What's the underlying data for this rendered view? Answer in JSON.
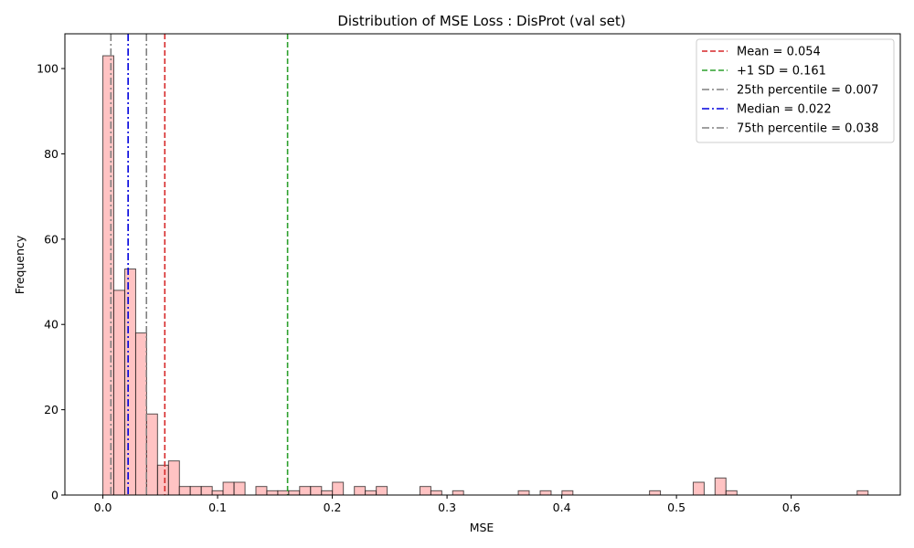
{
  "chart_data": {
    "type": "bar",
    "title": "Distribution of MSE Loss : DisProt (val set)",
    "xlabel": "MSE",
    "ylabel": "Frequency",
    "xlim": [
      -0.0331,
      0.6951
    ],
    "ylim": [
      0,
      108.15
    ],
    "xticks": [
      0.0,
      0.1,
      0.2,
      0.3,
      0.4,
      0.5,
      0.6
    ],
    "xtick_labels": [
      "0.0",
      "0.1",
      "0.2",
      "0.3",
      "0.4",
      "0.5",
      "0.6"
    ],
    "yticks": [
      0,
      20,
      40,
      60,
      80,
      100
    ],
    "ytick_labels": [
      "0",
      "20",
      "40",
      "60",
      "80",
      "100"
    ],
    "grid": false,
    "legend_position": "top-right",
    "bin_width": 0.00953,
    "bins": [
      {
        "x0": 0.0,
        "count": 103
      },
      {
        "x0": 0.0095,
        "count": 48
      },
      {
        "x0": 0.0191,
        "count": 53
      },
      {
        "x0": 0.0286,
        "count": 38
      },
      {
        "x0": 0.0381,
        "count": 19
      },
      {
        "x0": 0.0477,
        "count": 7
      },
      {
        "x0": 0.0572,
        "count": 8
      },
      {
        "x0": 0.0667,
        "count": 2
      },
      {
        "x0": 0.0762,
        "count": 2
      },
      {
        "x0": 0.0858,
        "count": 2
      },
      {
        "x0": 0.0953,
        "count": 1
      },
      {
        "x0": 0.1048,
        "count": 3
      },
      {
        "x0": 0.1144,
        "count": 3
      },
      {
        "x0": 0.1334,
        "count": 2
      },
      {
        "x0": 0.143,
        "count": 1
      },
      {
        "x0": 0.1525,
        "count": 1
      },
      {
        "x0": 0.162,
        "count": 1
      },
      {
        "x0": 0.1715,
        "count": 2
      },
      {
        "x0": 0.1811,
        "count": 2
      },
      {
        "x0": 0.1906,
        "count": 1
      },
      {
        "x0": 0.2001,
        "count": 3
      },
      {
        "x0": 0.2192,
        "count": 2
      },
      {
        "x0": 0.2287,
        "count": 1
      },
      {
        "x0": 0.2383,
        "count": 2
      },
      {
        "x0": 0.2764,
        "count": 2
      },
      {
        "x0": 0.2859,
        "count": 1
      },
      {
        "x0": 0.3049,
        "count": 1
      },
      {
        "x0": 0.3621,
        "count": 1
      },
      {
        "x0": 0.3812,
        "count": 1
      },
      {
        "x0": 0.4002,
        "count": 1
      },
      {
        "x0": 0.4765,
        "count": 1
      },
      {
        "x0": 0.5146,
        "count": 3
      },
      {
        "x0": 0.5336,
        "count": 4
      },
      {
        "x0": 0.5432,
        "count": 1
      },
      {
        "x0": 0.6575,
        "count": 1
      }
    ],
    "bar_color": "#ffc0c0",
    "bar_edge_color": "#000000",
    "reference_lines": [
      {
        "label": "Mean = 0.054",
        "x": 0.054,
        "color": "#d62728",
        "style": "dashed"
      },
      {
        "label": "+1 SD = 0.161",
        "x": 0.161,
        "color": "#2ca02c",
        "style": "dashed"
      },
      {
        "label": "25th percentile = 0.007",
        "x": 0.007,
        "color": "#808080",
        "style": "dashdot"
      },
      {
        "label": "Median = 0.022",
        "x": 0.022,
        "color": "#0000dd",
        "style": "dashdot"
      },
      {
        "label": "75th percentile = 0.038",
        "x": 0.038,
        "color": "#808080",
        "style": "dashdot"
      }
    ]
  }
}
